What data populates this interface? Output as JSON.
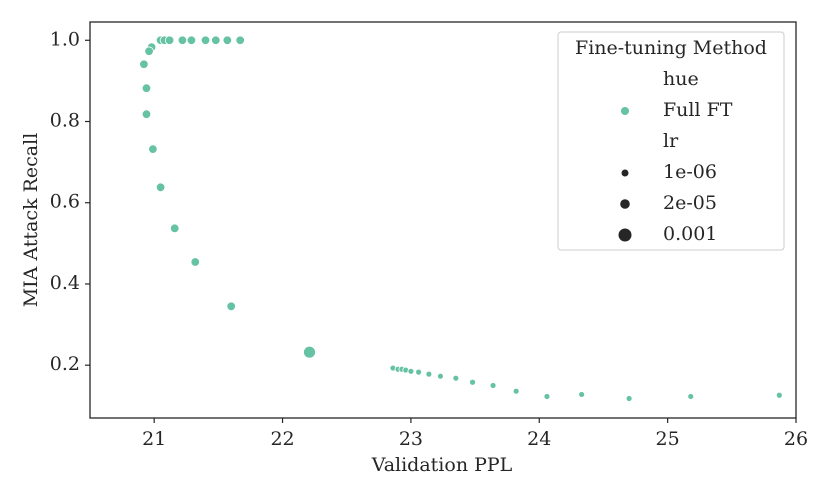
{
  "chart_data": {
    "type": "scatter",
    "xlabel": "Validation PPL",
    "ylabel": "MIA Attack Recall",
    "xlim": [
      20.5,
      26.0
    ],
    "ylim": [
      0.07,
      1.045
    ],
    "xticks": [
      21,
      22,
      23,
      24,
      25,
      26
    ],
    "yticks": [
      0.2,
      0.4,
      0.6,
      0.8,
      {
        "value": 1,
        "label": "1.0"
      }
    ],
    "grid": false,
    "legend": {
      "title": "Fine-tuning Method",
      "position": "upper right",
      "hue_title": "hue",
      "size_title": "lr",
      "sizes": [
        {
          "value": 1e-06,
          "label": "1e-06"
        },
        {
          "value": 2e-05,
          "label": "2e-05"
        },
        {
          "value": 0.001,
          "label": "0.001"
        }
      ]
    },
    "series": [
      {
        "name": "Full FT",
        "color": "#66c2a5",
        "x": [
          21.05,
          21.08,
          21.12,
          21.22,
          21.29,
          21.4,
          21.48,
          21.57,
          21.67,
          20.98,
          20.96,
          20.92,
          20.94,
          20.94,
          20.99,
          21.05,
          21.16,
          21.32,
          21.6,
          22.21,
          22.86,
          22.9,
          22.93,
          22.96,
          23.0,
          23.06,
          23.14,
          23.23,
          23.35,
          23.48,
          23.64,
          23.82,
          24.06,
          24.33,
          24.7,
          25.18,
          25.87
        ],
        "y": [
          1.0,
          1.0,
          1.0,
          1.0,
          1.0,
          1.0,
          1.0,
          1.0,
          1.0,
          0.983,
          0.973,
          0.941,
          0.882,
          0.818,
          0.732,
          0.638,
          0.537,
          0.454,
          0.345,
          0.232,
          0.193,
          0.19,
          0.19,
          0.188,
          0.185,
          0.183,
          0.178,
          0.173,
          0.168,
          0.158,
          0.15,
          0.136,
          0.123,
          0.128,
          0.118,
          0.123,
          0.126
        ],
        "size": [
          2e-05,
          2e-05,
          2e-05,
          2e-05,
          2e-05,
          2e-05,
          2e-05,
          2e-05,
          2e-05,
          2e-05,
          2e-05,
          2e-05,
          2e-05,
          2e-05,
          2e-05,
          2e-05,
          2e-05,
          2e-05,
          2e-05,
          0.001,
          1e-06,
          1e-06,
          1e-06,
          1e-06,
          1e-06,
          1e-06,
          1e-06,
          1e-06,
          1e-06,
          1e-06,
          1e-06,
          1e-06,
          1e-06,
          1e-06,
          1e-06,
          1e-06,
          1e-06
        ]
      }
    ]
  }
}
